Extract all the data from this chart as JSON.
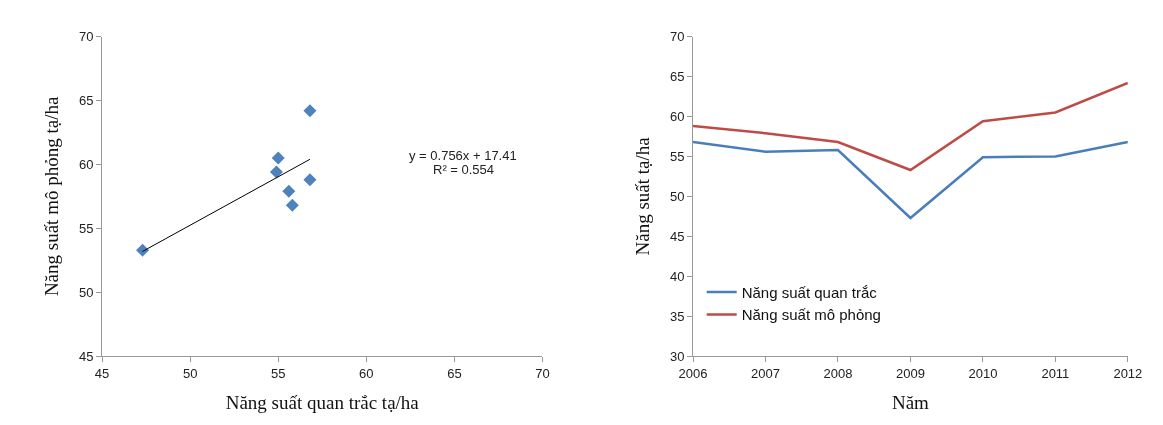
{
  "chart_data": [
    {
      "type": "scatter",
      "xlabel": "Năng suất quan trắc tạ/ha",
      "ylabel": "Năng suất mô phỏng tạ/ha",
      "xlim": [
        45,
        70
      ],
      "xticks": [
        45,
        50,
        55,
        60,
        65,
        70
      ],
      "ylim": [
        45,
        70
      ],
      "yticks": [
        45,
        50,
        55,
        60,
        65,
        70
      ],
      "annotations": [
        "y = 0.756x + 17.41",
        "R² = 0.554"
      ],
      "series": [
        {
          "type": "scatter",
          "marker": "diamond",
          "color": "#4f81bd",
          "x": [
            56.8,
            55.6,
            55.8,
            47.3,
            54.9,
            55.0,
            56.8
          ],
          "values": [
            58.8,
            57.9,
            56.8,
            53.3,
            59.4,
            60.5,
            64.2
          ]
        },
        {
          "type": "line",
          "marker": "none",
          "color": "#000000",
          "x": [
            47.3,
            56.8
          ],
          "values": [
            53.2,
            60.4
          ]
        }
      ]
    },
    {
      "type": "line",
      "xlabel": "Năm",
      "ylabel": "Năng suất tạ/ha",
      "legend": "bottom left",
      "marker": "none",
      "categories": [
        "2006",
        "2007",
        "2008",
        "2009",
        "2010",
        "2011",
        "2012"
      ],
      "ylim": [
        30,
        70
      ],
      "yticks": [
        30,
        35,
        40,
        45,
        50,
        55,
        60,
        65,
        70
      ],
      "series": [
        {
          "name": "Năng suất quan trắc",
          "color": "#4a7ebb",
          "values": [
            56.8,
            55.6,
            55.8,
            47.3,
            54.9,
            55.0,
            56.8
          ]
        },
        {
          "name": "Năng suất mô phỏng",
          "color": "#be4b48",
          "values": [
            58.8,
            57.9,
            56.8,
            53.3,
            59.4,
            60.5,
            64.2
          ]
        }
      ]
    }
  ]
}
